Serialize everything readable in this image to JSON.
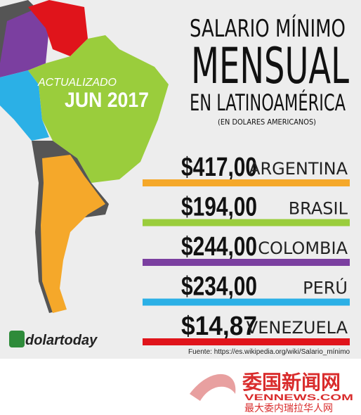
{
  "header": {
    "badge_line1": "ACTUALIZADO",
    "badge_line2": "JUN 2017",
    "title_line1": "SALARIO MÍNIMO",
    "title_line2": "MENSUAL",
    "title_line3": "EN LATINOAMÉRICA",
    "subtitle": "(EN DOLARES AMERICANOS)"
  },
  "rows": [
    {
      "amount": "$417,00",
      "country": "ARGENTINA",
      "color": "#f5a82a"
    },
    {
      "amount": "$194,00",
      "country": "BRASIL",
      "color": "#9acd3c"
    },
    {
      "amount": "$244,00",
      "country": "COLOMBIA",
      "color": "#7b3fa0"
    },
    {
      "amount": "$234,00",
      "country": "PERÚ",
      "color": "#2bb0e6"
    },
    {
      "amount": "$14,87",
      "country": "VENEZUELA",
      "color": "#e0141b"
    }
  ],
  "source": "Fuente: https://es.wikipedia.org/wiki/Salario_mínimo",
  "logo": "dolartoday",
  "watermark": {
    "title": "委国新闻网",
    "domain": "VENNEWS.COM",
    "tagline": "最大委内瑞拉华人网"
  }
}
